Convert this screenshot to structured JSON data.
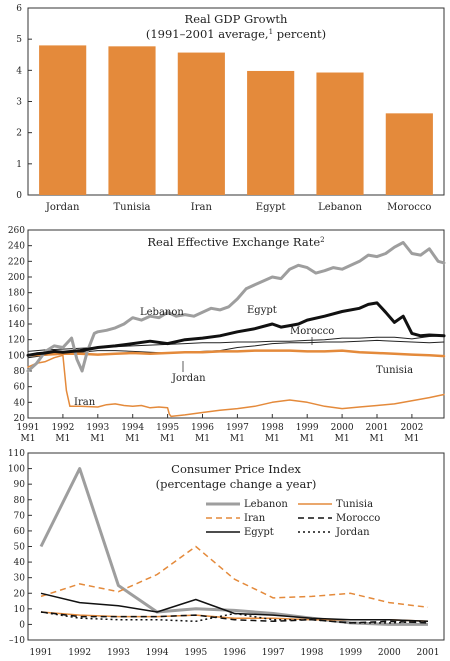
{
  "chart_data": [
    {
      "type": "bar",
      "title": "Real GDP Growth",
      "subtitle_pre": "(1991–2001 average,",
      "subtitle_sup": "1",
      "subtitle_post": " percent)",
      "categories": [
        "Jordan",
        "Tunisia",
        "Iran",
        "Egypt",
        "Lebanon",
        "Morocco"
      ],
      "values": [
        4.8,
        4.77,
        4.57,
        3.98,
        3.93,
        2.62
      ],
      "ylim": [
        0,
        6
      ],
      "yticks": [
        "0",
        "1",
        "2",
        "3",
        "4",
        "5",
        "6"
      ],
      "bar_color": "#e48a3b",
      "grid": false
    },
    {
      "type": "line",
      "title": "Real Effective Exchange Rate",
      "title_sup": "2",
      "ylim": [
        20,
        260
      ],
      "yticks": [
        "20",
        "40",
        "60",
        "80",
        "100",
        "120",
        "140",
        "160",
        "180",
        "200",
        "220",
        "240",
        "260"
      ],
      "xlim": [
        1991.0,
        2002.92
      ],
      "xticks": [
        {
          "x": 1991,
          "year": "1991",
          "month": "M1"
        },
        {
          "x": 1992,
          "year": "1992",
          "month": "M1"
        },
        {
          "x": 1993,
          "year": "1993",
          "month": "M1"
        },
        {
          "x": 1994,
          "year": "1994",
          "month": "M1"
        },
        {
          "x": 1995,
          "year": "1995",
          "month": "M1"
        },
        {
          "x": 1996,
          "year": "1996",
          "month": "M1"
        },
        {
          "x": 1997,
          "year": "1997",
          "month": "M1"
        },
        {
          "x": 1998,
          "year": "1998",
          "month": "M1"
        },
        {
          "x": 1999,
          "year": "1999",
          "month": "M1"
        },
        {
          "x": 2000,
          "year": "2000",
          "month": "M1"
        },
        {
          "x": 2001,
          "year": "2001",
          "month": "M1"
        },
        {
          "x": 2002,
          "year": "2002",
          "month": "M1"
        }
      ],
      "series": [
        {
          "name": "Lebanon",
          "color": "#9e9e9e",
          "width": 3,
          "x": [
            1991.0,
            1991.25,
            1991.5,
            1991.75,
            1992.0,
            1992.25,
            1992.4,
            1992.55,
            1992.7,
            1992.9,
            1993.0,
            1993.25,
            1993.5,
            1993.75,
            1994.0,
            1994.25,
            1994.5,
            1994.75,
            1995.0,
            1995.25,
            1995.5,
            1995.75,
            1996.0,
            1996.25,
            1996.5,
            1996.75,
            1997.0,
            1997.25,
            1997.5,
            1997.75,
            1998.0,
            1998.25,
            1998.5,
            1998.75,
            1999.0,
            1999.25,
            1999.5,
            1999.75,
            2000.0,
            2000.25,
            2000.5,
            2000.75,
            2001.0,
            2001.25,
            2001.5,
            2001.75,
            2002.0,
            2002.25,
            2002.5,
            2002.75,
            2002.92
          ],
          "y": [
            80,
            90,
            105,
            112,
            110,
            122,
            95,
            80,
            105,
            128,
            130,
            132,
            135,
            140,
            148,
            145,
            150,
            148,
            155,
            150,
            152,
            150,
            155,
            160,
            158,
            162,
            172,
            185,
            190,
            195,
            200,
            198,
            210,
            215,
            212,
            205,
            208,
            212,
            210,
            215,
            220,
            228,
            226,
            230,
            238,
            244,
            230,
            228,
            236,
            220,
            218
          ]
        },
        {
          "name": "Egypt",
          "color": "#111111",
          "width": 3,
          "x": [
            1991.0,
            1991.25,
            1991.5,
            1991.75,
            1992.0,
            1992.5,
            1993.0,
            1993.5,
            1994.0,
            1994.5,
            1995.0,
            1995.5,
            1996.0,
            1996.5,
            1997.0,
            1997.5,
            1998.0,
            1998.25,
            1998.5,
            1998.75,
            1999.0,
            1999.5,
            2000.0,
            2000.5,
            2000.75,
            2001.0,
            2001.25,
            2001.5,
            2001.75,
            2002.0,
            2002.25,
            2002.5,
            2002.92
          ],
          "y": [
            100,
            102,
            103,
            105,
            104,
            106,
            110,
            112,
            115,
            118,
            115,
            120,
            122,
            125,
            130,
            134,
            140,
            136,
            138,
            140,
            145,
            150,
            156,
            160,
            165,
            167,
            155,
            142,
            150,
            128,
            125,
            126,
            125
          ]
        },
        {
          "name": "Morocco",
          "color": "#222222",
          "width": 1,
          "x": [
            1991.0,
            1991.5,
            1992.0,
            1992.5,
            1993.0,
            1993.5,
            1994.0,
            1994.5,
            1995.0,
            1995.5,
            1996.0,
            1996.5,
            1997.0,
            1997.5,
            1998.0,
            1998.5,
            1999.0,
            1999.5,
            2000.0,
            2000.5,
            2001.0,
            2001.5,
            2002.0,
            2002.5,
            2002.92
          ],
          "y": [
            105,
            107,
            108,
            109,
            110,
            111,
            112,
            113,
            114,
            115,
            116,
            116,
            117,
            117,
            118,
            118,
            119,
            120,
            122,
            122,
            123,
            123,
            121,
            124,
            125
          ]
        },
        {
          "name": "Jordan",
          "color": "#222222",
          "width": 1,
          "x": [
            1991.0,
            1991.5,
            1992.0,
            1992.5,
            1993.0,
            1993.5,
            1994.0,
            1994.5,
            1995.0,
            1995.5,
            1996.0,
            1996.5,
            1997.0,
            1997.5,
            1998.0,
            1998.5,
            1999.0,
            1999.5,
            2000.0,
            2000.5,
            2001.0,
            2001.5,
            2002.0,
            2002.5,
            2002.92
          ],
          "y": [
            97,
            100,
            102,
            104,
            106,
            106,
            105,
            104,
            103,
            104,
            105,
            106,
            110,
            112,
            115,
            116,
            116,
            117,
            117,
            118,
            119,
            118,
            117,
            116,
            117
          ]
        },
        {
          "name": "Tunisia",
          "color": "#e48a3b",
          "width": 2.5,
          "x": [
            1991.0,
            1991.5,
            1992.0,
            1992.5,
            1993.0,
            1993.5,
            1994.0,
            1994.5,
            1995.0,
            1995.5,
            1996.0,
            1996.5,
            1997.0,
            1997.5,
            1998.0,
            1998.5,
            1999.0,
            1999.5,
            2000.0,
            2000.5,
            2001.0,
            2001.5,
            2002.0,
            2002.5,
            2002.92
          ],
          "y": [
            100,
            101,
            102,
            102,
            101,
            102,
            103,
            102,
            103,
            104,
            104,
            105,
            105,
            106,
            106,
            106,
            105,
            105,
            106,
            104,
            103,
            102,
            101,
            100,
            99
          ]
        },
        {
          "name": "Iran",
          "color": "#e48a3b",
          "width": 1.5,
          "x": [
            1991.0,
            1991.25,
            1991.5,
            1991.75,
            1992.0,
            1992.1,
            1992.2,
            1992.5,
            1993.0,
            1993.25,
            1993.5,
            1993.75,
            1994.0,
            1994.25,
            1994.5,
            1994.75,
            1995.0,
            1995.05,
            1995.1,
            1995.5,
            1996.0,
            1996.5,
            1997.0,
            1997.5,
            1998.0,
            1998.5,
            1999.0,
            1999.5,
            2000.0,
            2000.5,
            2001.0,
            2001.5,
            2002.0,
            2002.5,
            2002.92
          ],
          "y": [
            85,
            90,
            92,
            97,
            100,
            55,
            35,
            35,
            34,
            37,
            38,
            36,
            35,
            36,
            33,
            34,
            33,
            25,
            22,
            24,
            27,
            30,
            32,
            35,
            40,
            43,
            40,
            35,
            32,
            34,
            36,
            38,
            42,
            46,
            50
          ]
        }
      ],
      "labels": [
        "Lebanon",
        "Egypt",
        "Morocco",
        "Jordan",
        "Tunisia",
        "Iran"
      ]
    },
    {
      "type": "line",
      "title": "Consumer Price Index",
      "subtitle": "(percentage change a year)",
      "ylim": [
        -10,
        110
      ],
      "yticks": [
        "–10",
        "0",
        "10",
        "20",
        "30",
        "40",
        "50",
        "60",
        "70",
        "80",
        "90",
        "100",
        "110"
      ],
      "categories": [
        "1991",
        "1992",
        "1993",
        "1994",
        "1995",
        "1996",
        "1997",
        "1998",
        "1999",
        "2000",
        "2001"
      ],
      "series": [
        {
          "name": "Lebanon",
          "color": "#9e9e9e",
          "width": 3,
          "dash": "",
          "values": [
            50,
            100,
            25,
            8,
            10,
            9,
            7,
            4,
            1,
            0,
            0
          ]
        },
        {
          "name": "Tunisia",
          "color": "#e48a3b",
          "width": 1.5,
          "dash": "",
          "values": [
            8,
            6,
            5,
            5,
            6,
            4,
            4,
            3,
            3,
            3,
            2
          ]
        },
        {
          "name": "Iran",
          "color": "#e48a3b",
          "width": 1.5,
          "dash": "6,4",
          "values": [
            18,
            26,
            21,
            32,
            50,
            29,
            17,
            18,
            20,
            14,
            11
          ]
        },
        {
          "name": "Morocco",
          "color": "#111111",
          "width": 1.5,
          "dash": "6,4",
          "values": [
            8,
            5,
            5,
            5,
            6,
            3,
            2,
            3,
            1,
            2,
            1
          ]
        },
        {
          "name": "Egypt",
          "color": "#111111",
          "width": 1.5,
          "dash": "",
          "values": [
            20,
            14,
            12,
            8,
            16,
            7,
            6,
            4,
            3,
            3,
            2
          ]
        },
        {
          "name": "Jordan",
          "color": "#111111",
          "width": 1.5,
          "dash": "2,3",
          "values": [
            8,
            4,
            3,
            3,
            2,
            7,
            3,
            3,
            1,
            1,
            2
          ]
        }
      ],
      "legend": [
        "Lebanon",
        "Tunisia",
        "Iran",
        "Morocco",
        "Egypt",
        "Jordan"
      ]
    }
  ]
}
